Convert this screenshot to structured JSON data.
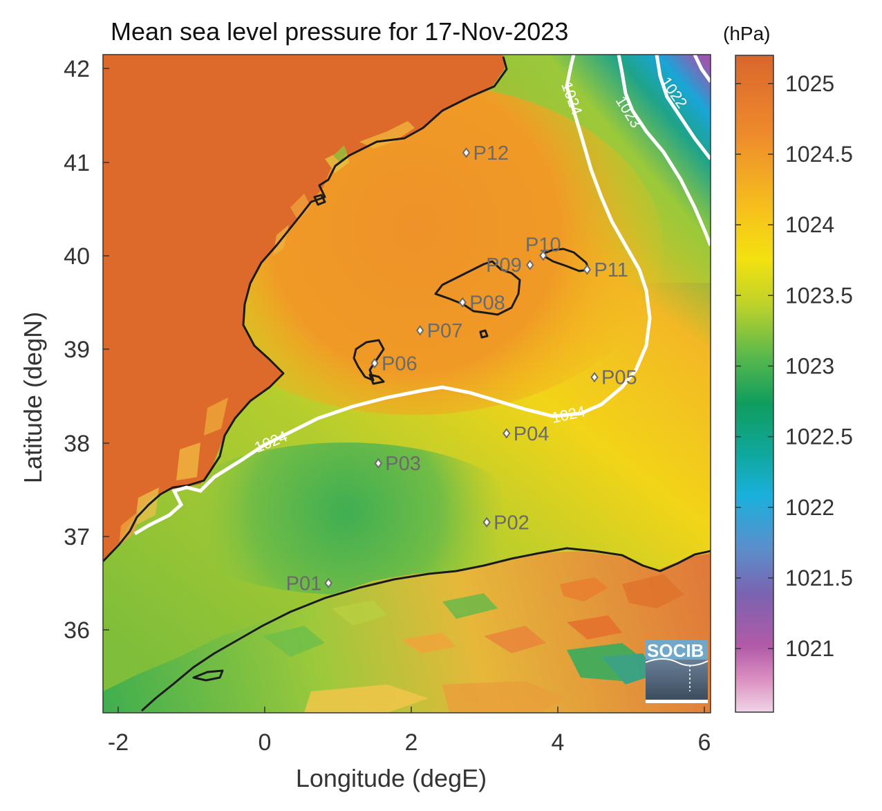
{
  "title": "Mean sea level pressure for 17-Nov-2023",
  "colorbar": {
    "unit": "(hPa)",
    "ticks": [
      "1025",
      "1024.5",
      "1024",
      "1023.5",
      "1023",
      "1022.5",
      "1022",
      "1021.5",
      "1021"
    ],
    "range": [
      1020.55,
      1025.2
    ]
  },
  "axes": {
    "xlabel": "Longitude (degE)",
    "ylabel": "Latitude (degN)",
    "xticks": [
      "-2",
      "0",
      "2",
      "4",
      "6"
    ],
    "yticks": [
      "42",
      "41",
      "40",
      "39",
      "38",
      "37",
      "36"
    ],
    "xlim": [
      -2.25,
      6.05
    ],
    "ylim": [
      35.15,
      42.2
    ]
  },
  "contours": {
    "levels": [
      "1024",
      "1023",
      "1022"
    ]
  },
  "stations": [
    {
      "label": "P01",
      "lon": 0.87,
      "lat": 36.5
    },
    {
      "label": "P02",
      "lon": 3.03,
      "lat": 37.15
    },
    {
      "label": "P03",
      "lon": 1.55,
      "lat": 37.78
    },
    {
      "label": "P04",
      "lon": 3.3,
      "lat": 38.1
    },
    {
      "label": "P05",
      "lon": 4.5,
      "lat": 38.7
    },
    {
      "label": "P06",
      "lon": 1.5,
      "lat": 38.85
    },
    {
      "label": "P07",
      "lon": 2.12,
      "lat": 39.2
    },
    {
      "label": "P08",
      "lon": 2.7,
      "lat": 39.5
    },
    {
      "label": "P09",
      "lon": 3.62,
      "lat": 39.9
    },
    {
      "label": "P10",
      "lon": 3.8,
      "lat": 40.0
    },
    {
      "label": "P11",
      "lon": 4.4,
      "lat": 39.85
    },
    {
      "label": "P12",
      "lon": 2.75,
      "lat": 41.1
    }
  ],
  "logo": "SOCIB",
  "colors": {
    "land_high": "#dd6a2a",
    "sea_orange": "#ef8a2a",
    "sea_yellow": "#f2cf18",
    "sea_green": "#8fc43c",
    "sea_deepgreen": "#2fa655",
    "sea_teal": "#10a99a",
    "sea_cyan": "#1aa5d8",
    "sea_purple": "#8a5aa8",
    "coastline": "#1a1a1a",
    "contour": "#ffffff",
    "station": "#6a6a6a"
  }
}
